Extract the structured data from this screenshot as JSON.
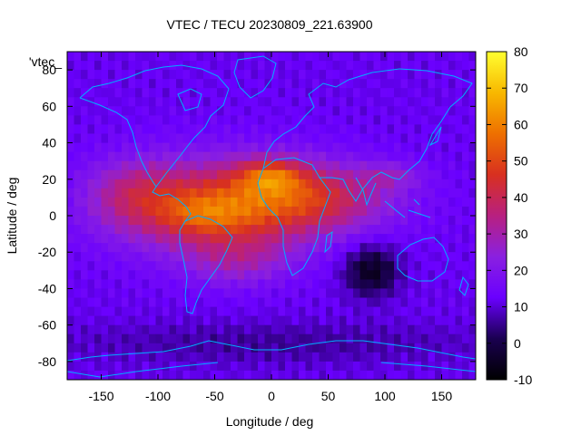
{
  "chart_data": {
    "type": "heatmap",
    "title": "VTEC / TECU 20230809_221.63900",
    "xlabel": "Longitude / deg",
    "ylabel": "Latitude / deg",
    "xlim": [
      -180,
      180
    ],
    "ylim": [
      -90,
      90
    ],
    "x_ticks": [
      -150,
      -100,
      -50,
      0,
      50,
      100,
      150
    ],
    "y_ticks": [
      -80,
      -60,
      -40,
      -20,
      0,
      20,
      40,
      60,
      80
    ],
    "colorbar": {
      "range": [
        -10,
        80
      ],
      "ticks": [
        -10,
        0,
        10,
        20,
        30,
        40,
        50,
        60,
        70,
        80
      ],
      "colors": [
        "#000000",
        "#1a0050",
        "#6a00ff",
        "#8a20e0",
        "#b82080",
        "#d83020",
        "#ee7000",
        "#f8b800",
        "#ffff30"
      ]
    },
    "legend_label": "'vtec_",
    "grid": false,
    "features": [
      {
        "desc": "equatorial anomaly crest",
        "lon": -55,
        "lat": 3,
        "value": 60
      },
      {
        "desc": "peak near Africa / Arabia",
        "lon": 0,
        "lat": 23,
        "value": 70
      },
      {
        "desc": "americas daytime band",
        "lon": -120,
        "lat": 15,
        "value": 48
      },
      {
        "desc": "south indian ocean depletion",
        "lon": 85,
        "lat": -28,
        "value": -5
      }
    ]
  }
}
